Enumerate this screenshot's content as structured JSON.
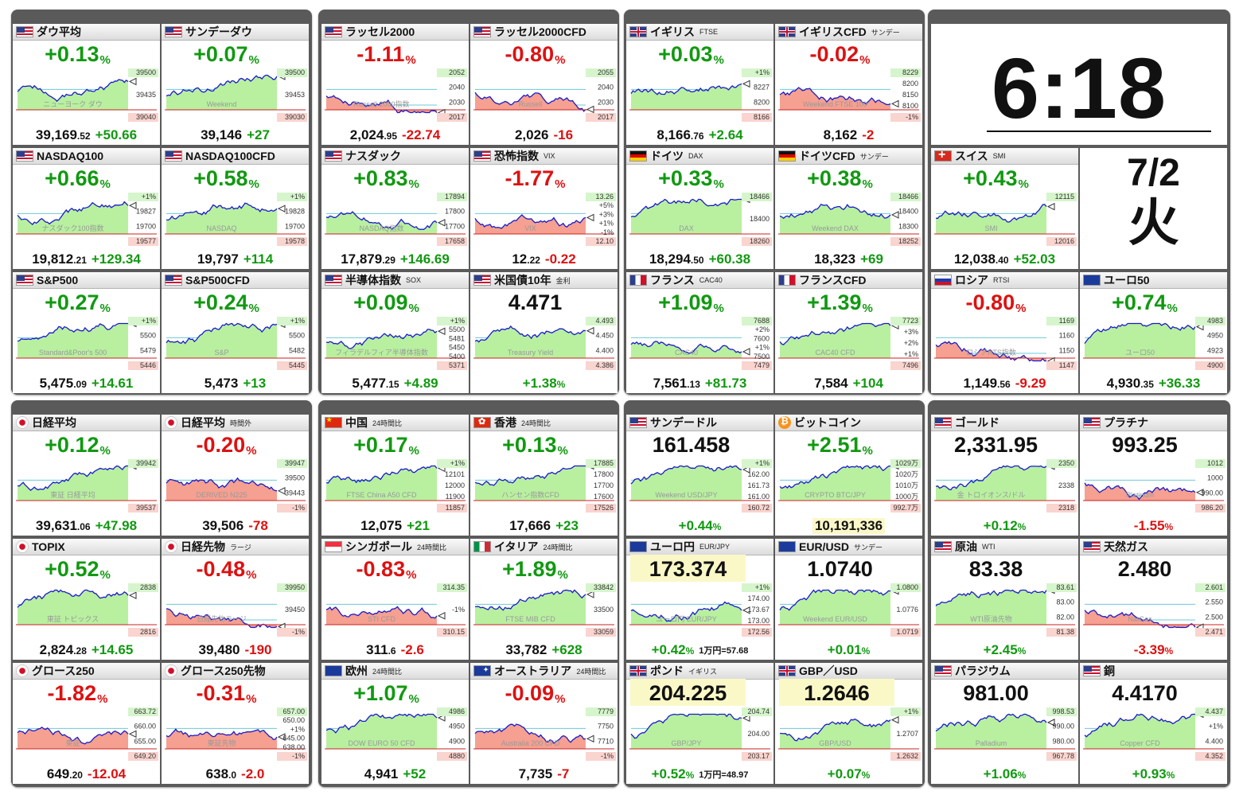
{
  "clock": {
    "time": "6:18",
    "date": "7/2",
    "weekday": "火"
  },
  "colors": {
    "up": "#119911",
    "down": "#dd1111",
    "line": "#1a1acc",
    "fill_up": "#b8f0a0",
    "fill_down": "#f5a090"
  },
  "tiles": [
    {
      "id": "dow",
      "flag": "us",
      "name": "ダウ平均",
      "sub": "",
      "pct": "+0.13",
      "pv_main": "39,169",
      "pv_dec": ".52",
      "chg": "+50.66",
      "dir": "up",
      "labels": [
        "39500",
        "39435",
        "39040"
      ],
      "wm": "ニューヨーク ダウ"
    },
    {
      "id": "sunday-dow",
      "flag": "us",
      "name": "サンデーダウ",
      "sub": "",
      "pct": "+0.07",
      "pv_main": "39,146",
      "pv_dec": "",
      "chg": "+27",
      "dir": "up",
      "labels": [
        "39500",
        "39453",
        "39030"
      ],
      "wm": "Weekend"
    },
    {
      "id": "russell2000",
      "flag": "us",
      "name": "ラッセル2000",
      "sub": "",
      "pct": "-1.11",
      "pv_main": "2,024",
      "pv_dec": ".95",
      "chg": "-22.74",
      "dir": "down",
      "labels": [
        "2052",
        "2040",
        "2030",
        "2017"
      ],
      "wm": "Russell 2000指数"
    },
    {
      "id": "russell2000cfd",
      "flag": "us",
      "name": "ラッセル2000CFD",
      "sub": "",
      "pct": "-0.80",
      "pv_main": "2,026",
      "pv_dec": "",
      "chg": "-16",
      "dir": "down",
      "labels": [
        "2055",
        "2040",
        "2030",
        "2017"
      ],
      "wm": "Russell"
    },
    {
      "id": "ftse",
      "flag": "gb",
      "name": "イギリス",
      "sub": "FTSE",
      "pct": "+0.03",
      "pv_main": "8,166",
      "pv_dec": ".76",
      "chg": "+2.64",
      "dir": "up",
      "labels": [
        "+1%",
        "8227",
        "8200",
        "8166"
      ],
      "wm": ""
    },
    {
      "id": "ftse-cfd",
      "flag": "gb",
      "name": "イギリスCFD",
      "sub": "サンデー",
      "pct": "-0.02",
      "pv_main": "8,162",
      "pv_dec": "",
      "chg": "-2",
      "dir": "down",
      "labels": [
        "8229",
        "8200",
        "8150",
        "8100",
        "-1%"
      ],
      "wm": "Weekend FTSE 100"
    },
    {
      "id": "nasdaq100",
      "flag": "us",
      "name": "NASDAQ100",
      "sub": "",
      "pct": "+0.66",
      "pv_main": "19,812",
      "pv_dec": ".21",
      "chg": "+129.34",
      "dir": "up",
      "labels": [
        "+1%",
        "19827",
        "19700",
        "19577"
      ],
      "wm": "ナスダック100指数"
    },
    {
      "id": "nasdaq100cfd",
      "flag": "us",
      "name": "NASDAQ100CFD",
      "sub": "",
      "pct": "+0.58",
      "pv_main": "19,797",
      "pv_dec": "",
      "chg": "+114",
      "dir": "up",
      "labels": [
        "+1%",
        "19828",
        "19700",
        "19578"
      ],
      "wm": "NASDAQ"
    },
    {
      "id": "nasdaq",
      "flag": "us",
      "name": "ナスダック",
      "sub": "",
      "pct": "+0.83",
      "pv_main": "17,879",
      "pv_dec": ".29",
      "chg": "+146.69",
      "dir": "up",
      "labels": [
        "17894",
        "17800",
        "17700",
        "17658"
      ],
      "wm": "NASDAQ指数"
    },
    {
      "id": "vix",
      "flag": "us",
      "name": "恐怖指数",
      "sub": "VIX",
      "pct": "-1.77",
      "pv_main": "12",
      "pv_dec": ".22",
      "chg": "-0.22",
      "dir": "down",
      "labels": [
        "13.26",
        "+5%",
        "+3%",
        "+1%",
        "-1%",
        "12.10"
      ],
      "wm": "VIX"
    },
    {
      "id": "dax",
      "flag": "de",
      "name": "ドイツ",
      "sub": "DAX",
      "pct": "+0.33",
      "pv_main": "18,294",
      "pv_dec": ".50",
      "chg": "+60.38",
      "dir": "up",
      "labels": [
        "18466",
        "18400",
        "18260"
      ],
      "wm": "DAX"
    },
    {
      "id": "dax-cfd",
      "flag": "de",
      "name": "ドイツCFD",
      "sub": "サンデー",
      "pct": "+0.38",
      "pv_main": "18,323",
      "pv_dec": "",
      "chg": "+69",
      "dir": "up",
      "labels": [
        "18466",
        "18400",
        "18300",
        "18252"
      ],
      "wm": "Weekend DAX"
    },
    {
      "id": "smi",
      "flag": "ch",
      "name": "スイス",
      "sub": "SMI",
      "pct": "+0.43",
      "pv_main": "12,038",
      "pv_dec": ".40",
      "chg": "+52.03",
      "dir": "up",
      "labels": [
        "12115",
        "12016"
      ],
      "wm": "SMI"
    },
    {
      "id": "sp500",
      "flag": "us",
      "name": "S&P500",
      "sub": "",
      "pct": "+0.27",
      "pv_main": "5,475",
      "pv_dec": ".09",
      "chg": "+14.61",
      "dir": "up",
      "labels": [
        "+1%",
        "5500",
        "5479",
        "5446"
      ],
      "wm": "Standard&Poor's 500"
    },
    {
      "id": "sp500cfd",
      "flag": "us",
      "name": "S&P500CFD",
      "sub": "",
      "pct": "+0.24",
      "pv_main": "5,473",
      "pv_dec": "",
      "chg": "+13",
      "dir": "up",
      "labels": [
        "+1%",
        "5500",
        "5482",
        "5445"
      ],
      "wm": "S&P"
    },
    {
      "id": "sox",
      "flag": "us",
      "name": "半導体指数",
      "sub": "SOX",
      "pct": "+0.09",
      "pv_main": "5,477",
      "pv_dec": ".15",
      "chg": "+4.89",
      "dir": "up",
      "labels": [
        "+1%",
        "5500",
        "5481",
        "5450",
        "5400",
        "5371"
      ],
      "wm": "フィラデルフィア半導体指数"
    },
    {
      "id": "us10y",
      "flag": "us",
      "name": "米国債10年",
      "sub": "金利",
      "pct": "4.471",
      "pv_main": "",
      "pv_dec": "",
      "chg": "+1.38",
      "dir": "up",
      "labels": [
        "4.493",
        "4.450",
        "4.400",
        "4.386"
      ],
      "wm": "Treasury Yield"
    },
    {
      "id": "cac40",
      "flag": "fr",
      "name": "フランス",
      "sub": "CAC40",
      "pct": "+1.09",
      "pv_main": "7,561",
      "pv_dec": ".13",
      "chg": "+81.73",
      "dir": "up",
      "labels": [
        "7688",
        "+2%",
        "7600",
        "+1%",
        "7500",
        "7479"
      ],
      "wm": "CAC40"
    },
    {
      "id": "cac40cfd",
      "flag": "fr",
      "name": "フランスCFD",
      "sub": "",
      "pct": "+1.39",
      "pv_main": "7,584",
      "pv_dec": "",
      "chg": "+104",
      "dir": "up",
      "labels": [
        "7723",
        "+3%",
        "+2%",
        "+1%",
        "7496"
      ],
      "wm": "CAC40 CFD"
    },
    {
      "id": "rtsi",
      "flag": "ru",
      "name": "ロシア",
      "sub": "RTSI",
      "pct": "-0.80",
      "pv_main": "1,149",
      "pv_dec": ".56",
      "chg": "-9.29",
      "dir": "down",
      "labels": [
        "1169",
        "1160",
        "1150",
        "1147"
      ],
      "wm": "ロシアRTS指数"
    },
    {
      "id": "euro50",
      "flag": "eu",
      "name": "ユーロ50",
      "sub": "",
      "pct": "+0.74",
      "pv_main": "4,930",
      "pv_dec": ".35",
      "chg": "+36.33",
      "dir": "up",
      "labels": [
        "4983",
        "4950",
        "4923",
        "4900"
      ],
      "wm": "ユーロ50"
    },
    {
      "id": "nikkei",
      "flag": "jp",
      "name": "日経平均",
      "sub": "",
      "pct": "+0.12",
      "pv_main": "39,631",
      "pv_dec": ".06",
      "chg": "+47.98",
      "dir": "up",
      "labels": [
        "39942",
        "39537"
      ],
      "wm": "東証 日経平均"
    },
    {
      "id": "nikkei-ah",
      "flag": "jp",
      "name": "日経平均",
      "sub": "時間外",
      "pct": "-0.20",
      "pv_main": "39,506",
      "pv_dec": "",
      "chg": "-78",
      "dir": "down",
      "labels": [
        "39947",
        "39500",
        "39443",
        "-1%"
      ],
      "wm": "DERIVED N225"
    },
    {
      "id": "china",
      "flag": "cn",
      "name": "中国",
      "sub": "24時間比",
      "pct": "+0.17",
      "pv_main": "12,075",
      "pv_dec": "",
      "chg": "+21",
      "dir": "up",
      "labels": [
        "+1%",
        "12101",
        "12000",
        "11900",
        "11857"
      ],
      "wm": "FTSE China A50 CFD"
    },
    {
      "id": "hongkong",
      "flag": "hk",
      "name": "香港",
      "sub": "24時間比",
      "pct": "+0.13",
      "pv_main": "17,666",
      "pv_dec": "",
      "chg": "+23",
      "dir": "up",
      "labels": [
        "17885",
        "17800",
        "17700",
        "17600",
        "17526"
      ],
      "wm": "ハンセン指数CFD"
    },
    {
      "id": "sunday-usdjpy",
      "flag": "us",
      "name": "サンデードル",
      "sub": "",
      "pct": "161.458",
      "pv_main": "",
      "pv_dec": "",
      "chg": "+0.44",
      "dir": "up",
      "labels": [
        "+1%",
        "162.00",
        "161.73",
        "161.00",
        "160.72"
      ],
      "wm": "Weekend USD/JPY"
    },
    {
      "id": "bitcoin",
      "flag": "btc",
      "name": "ビットコイン",
      "sub": "",
      "pct": "+2.51",
      "pv_main": "10,191,336",
      "pv_dec": "",
      "chg": "",
      "dir": "up",
      "labels": [
        "1029万",
        "1020万",
        "1010万",
        "1000万",
        "992.7万"
      ],
      "wm": "CRYPTO BTC/JPY"
    },
    {
      "id": "gold",
      "flag": "us",
      "name": "ゴールド",
      "sub": "",
      "pct": "2,331.95",
      "pv_main": "",
      "pv_dec": "",
      "chg": "+0.12",
      "dir": "up",
      "labels": [
        "2350",
        "2338",
        "2318"
      ],
      "wm": "金 トロイオンス/ドル"
    },
    {
      "id": "platinum",
      "flag": "us",
      "name": "プラチナ",
      "sub": "",
      "pct": "993.25",
      "pv_main": "",
      "pv_dec": "",
      "chg": "-1.55",
      "dir": "down",
      "labels": [
        "1012",
        "1000",
        "990.00",
        "986.20"
      ],
      "wm": "Platinum"
    },
    {
      "id": "topix",
      "flag": "jp",
      "name": "TOPIX",
      "sub": "",
      "pct": "+0.52",
      "pv_main": "2,824",
      "pv_dec": ".28",
      "chg": "+14.65",
      "dir": "up",
      "labels": [
        "2838",
        "2816"
      ],
      "wm": "東証 トピックス"
    },
    {
      "id": "nikkei-fut",
      "flag": "jp",
      "name": "日経先物",
      "sub": "ラージ",
      "pct": "-0.48",
      "pv_main": "39,480",
      "pv_dec": "",
      "chg": "-190",
      "dir": "down",
      "labels": [
        "39950",
        "39450",
        "-1%"
      ],
      "wm": "日経先物ラージ"
    },
    {
      "id": "singapore",
      "flag": "sg",
      "name": "シンガポール",
      "sub": "24時間比",
      "pct": "-0.83",
      "pv_main": "311",
      "pv_dec": ".6",
      "chg": "-2.6",
      "dir": "down",
      "labels": [
        "314.35",
        "-1%",
        "310.15"
      ],
      "wm": "STI CFD"
    },
    {
      "id": "italy",
      "flag": "it",
      "name": "イタリア",
      "sub": "24時間比",
      "pct": "+1.89",
      "pv_main": "33,782",
      "pv_dec": "",
      "chg": "+628",
      "dir": "up",
      "labels": [
        "33842",
        "33500",
        "33059"
      ],
      "wm": "FTSE MIB CFD"
    },
    {
      "id": "eurjpy",
      "flag": "eu",
      "name": "ユーロ円",
      "sub": "EUR/JPY",
      "pct": "173.374",
      "pv_main": "",
      "pv_dec": "",
      "chg": "+0.42",
      "dir": "up",
      "labels": [
        "+1%",
        "174.00",
        "173.67",
        "173.00",
        "172.56"
      ],
      "wm": "ユーロ円 EUR/JPY",
      "note": "1万円=57.68"
    },
    {
      "id": "eurusd",
      "flag": "eu",
      "name": "EUR/USD",
      "sub": "サンデー",
      "pct": "1.0740",
      "pv_main": "",
      "pv_dec": "",
      "chg": "+0.01",
      "dir": "up",
      "labels": [
        "1.0800",
        "1.0776",
        "1.0719"
      ],
      "wm": "Weekend EUR/USD"
    },
    {
      "id": "wti",
      "flag": "us",
      "name": "原油",
      "sub": "WTI",
      "pct": "83.38",
      "pv_main": "",
      "pv_dec": "",
      "chg": "+2.45",
      "dir": "up",
      "labels": [
        "83.61",
        "83.00",
        "82.00",
        "81.38"
      ],
      "wm": "WTI原油先物"
    },
    {
      "id": "natgas",
      "flag": "us",
      "name": "天然ガス",
      "sub": "",
      "pct": "2.480",
      "pv_main": "",
      "pv_dec": "",
      "chg": "-3.39",
      "dir": "down",
      "labels": [
        "2.601",
        "2.550",
        "2.500",
        "2.471"
      ],
      "wm": "NatGas"
    },
    {
      "id": "growth250",
      "flag": "jp",
      "name": "グロース250",
      "sub": "",
      "pct": "-1.82",
      "pv_main": "649",
      "pv_dec": ".20",
      "chg": "-12.04",
      "dir": "down",
      "labels": [
        "663.72",
        "660.00",
        "655.00",
        "649.20"
      ],
      "wm": "東証"
    },
    {
      "id": "growth250-fut",
      "flag": "jp",
      "name": "グロース250先物",
      "sub": "",
      "pct": "-0.31",
      "pv_main": "638",
      "pv_dec": ".0",
      "chg": "-2.0",
      "dir": "down",
      "labels": [
        "657.00",
        "650.00",
        "+1%",
        "645.00",
        "638.00",
        "-1%"
      ],
      "wm": "東証先物"
    },
    {
      "id": "europe",
      "flag": "eu",
      "name": "欧州",
      "sub": "24時間比",
      "pct": "+1.07",
      "pv_main": "4,941",
      "pv_dec": "",
      "chg": "+52",
      "dir": "up",
      "labels": [
        "4986",
        "4950",
        "4900",
        "4880"
      ],
      "wm": "DOW EURO 50 CFD"
    },
    {
      "id": "australia",
      "flag": "au",
      "name": "オーストラリア",
      "sub": "24時間比",
      "pct": "-0.09",
      "pv_main": "7,735",
      "pv_dec": "",
      "chg": "-7",
      "dir": "down",
      "labels": [
        "7779",
        "7750",
        "7710",
        "-1%"
      ],
      "wm": "Australia 200 CFD"
    },
    {
      "id": "gbpjpy",
      "flag": "gb",
      "name": "ポンド",
      "sub": "イギリス",
      "pct": "204.225",
      "pv_main": "",
      "pv_dec": "",
      "chg": "+0.52",
      "dir": "up",
      "labels": [
        "204.74",
        "204.00",
        "203.17"
      ],
      "wm": "GBP/JPY",
      "note": "1万円=48.97"
    },
    {
      "id": "gbpusd",
      "flag": "gb",
      "name": "GBP／USD",
      "sub": "",
      "pct": "1.2646",
      "pv_main": "",
      "pv_dec": "",
      "chg": "+0.07",
      "dir": "up",
      "labels": [
        "+1%",
        "1.2707",
        "1.2632"
      ],
      "wm": "GBP/USD"
    },
    {
      "id": "palladium",
      "flag": "us",
      "name": "パラジウム",
      "sub": "",
      "pct": "981.00",
      "pv_main": "",
      "pv_dec": "",
      "chg": "+1.06",
      "dir": "up",
      "labels": [
        "998.53",
        "990.00",
        "980.00",
        "967.78"
      ],
      "wm": "Palladium"
    },
    {
      "id": "copper",
      "flag": "us",
      "name": "銅",
      "sub": "",
      "pct": "4.4170",
      "pv_main": "",
      "pv_dec": "",
      "chg": "+0.93",
      "dir": "up",
      "labels": [
        "4.437",
        "+1%",
        "4.400",
        "4.352"
      ],
      "wm": "Copper CFD"
    }
  ]
}
